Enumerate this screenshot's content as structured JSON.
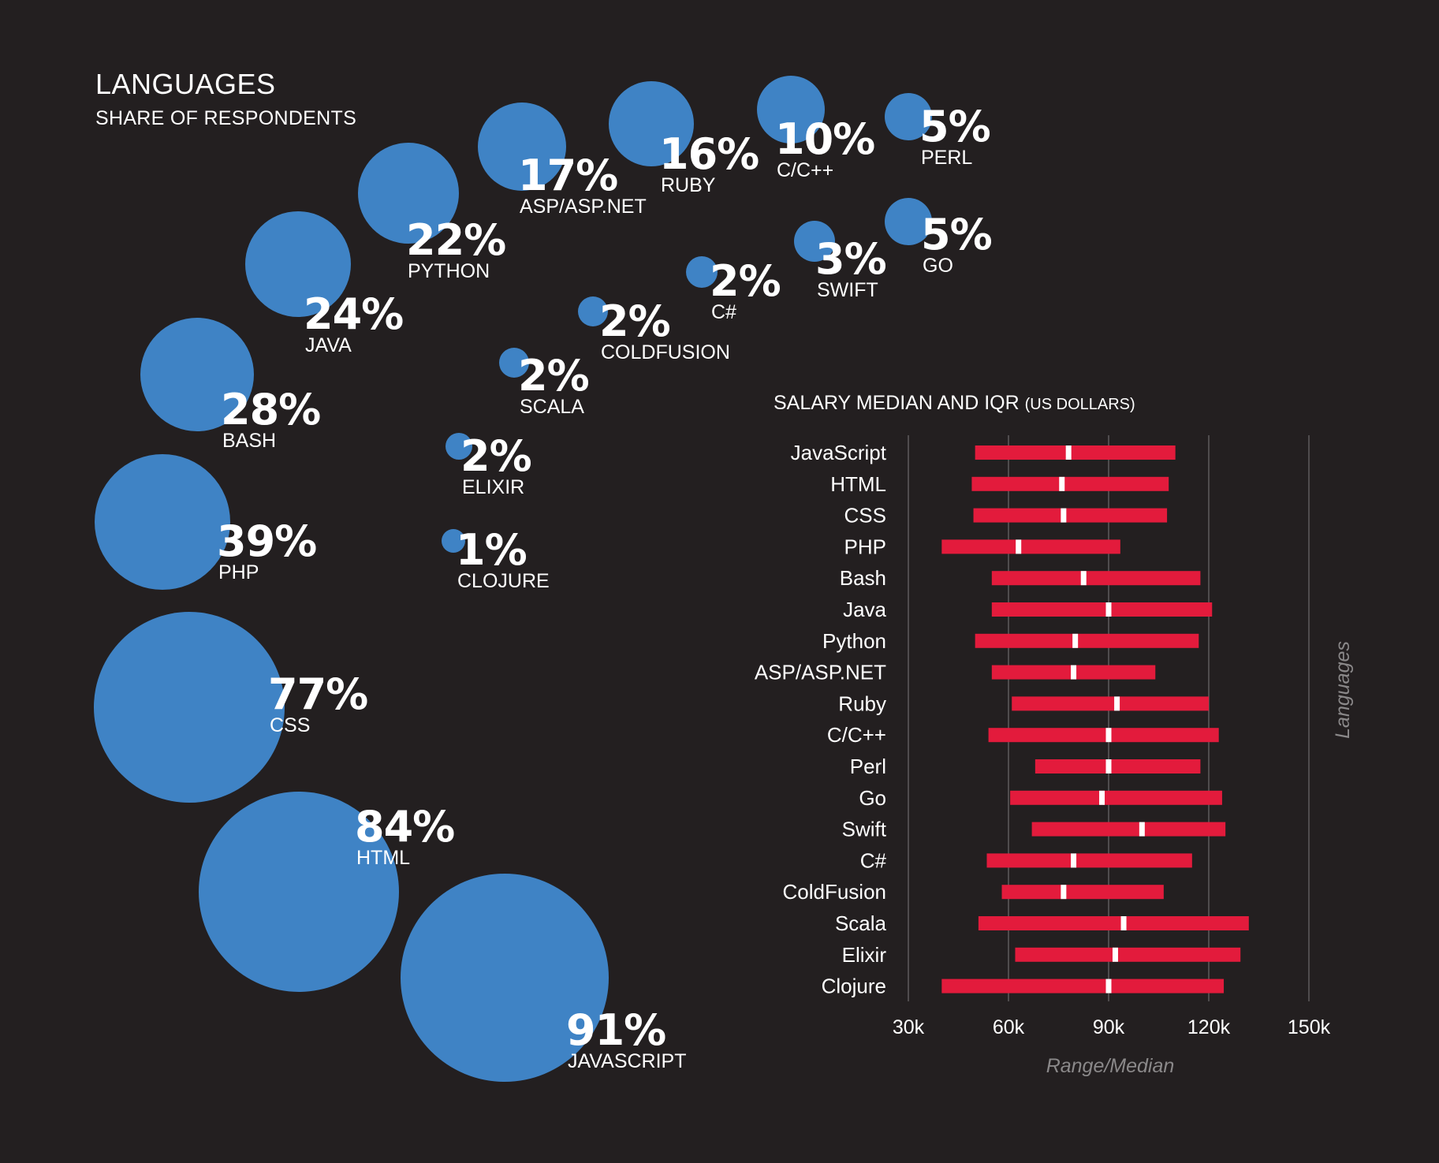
{
  "title": "LANGUAGES",
  "subtitle": "SHARE OF RESPONDENTS",
  "salary_chart": {
    "title": "SALARY MEDIAN AND IQR",
    "unit": "(US DOLLARS)",
    "xlabel": "Range/Median",
    "ylabel": "Languages"
  },
  "colors": {
    "background": "#231f20",
    "bubble": "#3f83c5",
    "bar": "#e31b3c",
    "median": "#ffffff",
    "grid": "#6d6b6c",
    "axis_label": "#8a8889"
  },
  "chart_data": [
    {
      "type": "bubble",
      "title": "LANGUAGES",
      "subtitle": "SHARE OF RESPONDENTS",
      "unit": "%",
      "items": [
        {
          "pct": "91%",
          "label": "JAVASCRIPT",
          "value": 91
        },
        {
          "pct": "84%",
          "label": "HTML",
          "value": 84
        },
        {
          "pct": "77%",
          "label": "CSS",
          "value": 77
        },
        {
          "pct": "39%",
          "label": "PHP",
          "value": 39
        },
        {
          "pct": "28%",
          "label": "BASH",
          "value": 28
        },
        {
          "pct": "24%",
          "label": "JAVA",
          "value": 24
        },
        {
          "pct": "22%",
          "label": "PYTHON",
          "value": 22
        },
        {
          "pct": "17%",
          "label": "ASP/ASP.NET",
          "value": 17
        },
        {
          "pct": "16%",
          "label": "RUBY",
          "value": 16
        },
        {
          "pct": "10%",
          "label": "C/C++",
          "value": 10
        },
        {
          "pct": "5%",
          "label": "PERL",
          "value": 5
        },
        {
          "pct": "5%",
          "label": "GO",
          "value": 5
        },
        {
          "pct": "3%",
          "label": "SWIFT",
          "value": 3
        },
        {
          "pct": "2%",
          "label": "C#",
          "value": 2
        },
        {
          "pct": "2%",
          "label": "COLDFUSION",
          "value": 2
        },
        {
          "pct": "2%",
          "label": "SCALA",
          "value": 2
        },
        {
          "pct": "2%",
          "label": "ELIXIR",
          "value": 2
        },
        {
          "pct": "1%",
          "label": "CLOJURE",
          "value": 1
        }
      ]
    },
    {
      "type": "range",
      "title": "SALARY MEDIAN AND IQR",
      "unit": "(US DOLLARS)",
      "xlabel": "Range/Median",
      "ylabel": "Languages",
      "xlim": [
        30000,
        150000
      ],
      "xticks": [
        30000,
        60000,
        90000,
        120000,
        150000
      ],
      "xtick_labels": [
        "30k",
        "60k",
        "90k",
        "120k",
        "150k"
      ],
      "grid": true,
      "rows": [
        {
          "label": "JavaScript",
          "low": 50000,
          "median": 78000,
          "high": 110000
        },
        {
          "label": "HTML",
          "low": 49000,
          "median": 76000,
          "high": 108000
        },
        {
          "label": "CSS",
          "low": 49500,
          "median": 76500,
          "high": 107500
        },
        {
          "label": "PHP",
          "low": 40000,
          "median": 63000,
          "high": 93500
        },
        {
          "label": "Bash",
          "low": 55000,
          "median": 82500,
          "high": 117500
        },
        {
          "label": "Java",
          "low": 55000,
          "median": 90000,
          "high": 121000
        },
        {
          "label": "Python",
          "low": 50000,
          "median": 80000,
          "high": 117000
        },
        {
          "label": "ASP/ASP.NET",
          "low": 55000,
          "median": 79500,
          "high": 104000
        },
        {
          "label": "Ruby",
          "low": 61000,
          "median": 92500,
          "high": 120000
        },
        {
          "label": "C/C++",
          "low": 54000,
          "median": 90000,
          "high": 123000
        },
        {
          "label": "Perl",
          "low": 68000,
          "median": 90000,
          "high": 117500
        },
        {
          "label": "Go",
          "low": 60500,
          "median": 88000,
          "high": 124000
        },
        {
          "label": "Swift",
          "low": 67000,
          "median": 100000,
          "high": 125000
        },
        {
          "label": "C#",
          "low": 53500,
          "median": 79500,
          "high": 115000
        },
        {
          "label": "ColdFusion",
          "low": 58000,
          "median": 76500,
          "high": 106500
        },
        {
          "label": "Scala",
          "low": 51000,
          "median": 94500,
          "high": 132000
        },
        {
          "label": "Elixir",
          "low": 62000,
          "median": 92000,
          "high": 129500
        },
        {
          "label": "Clojure",
          "low": 40000,
          "median": 90000,
          "high": 124500
        }
      ]
    }
  ]
}
